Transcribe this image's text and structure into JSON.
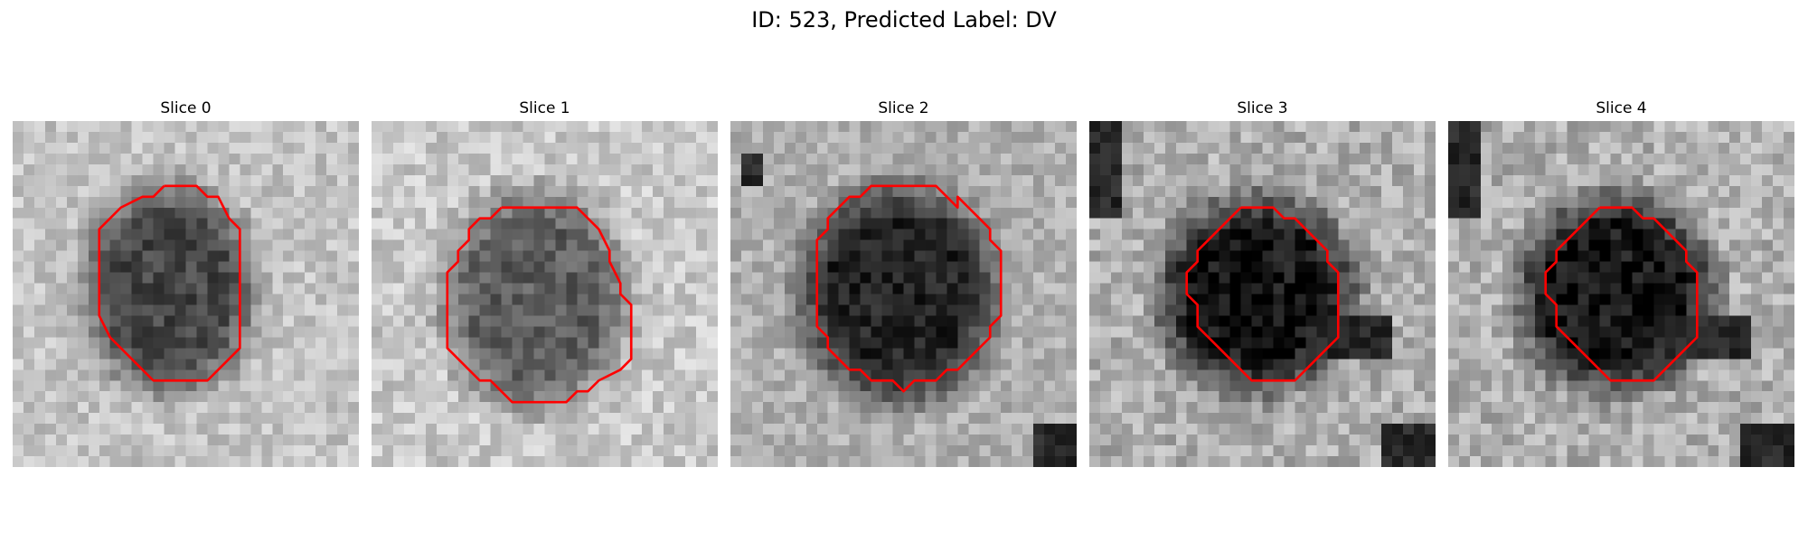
{
  "figure": {
    "title": "ID: 523, Predicted Label: DV"
  },
  "slices": [
    {
      "title": "Slice 0"
    },
    {
      "title": "Slice 1"
    },
    {
      "title": "Slice 2"
    },
    {
      "title": "Slice 3"
    },
    {
      "title": "Slice 4"
    }
  ],
  "colors": {
    "contour": "#ff0000",
    "background": "#ffffff",
    "colormap": "gray"
  }
}
